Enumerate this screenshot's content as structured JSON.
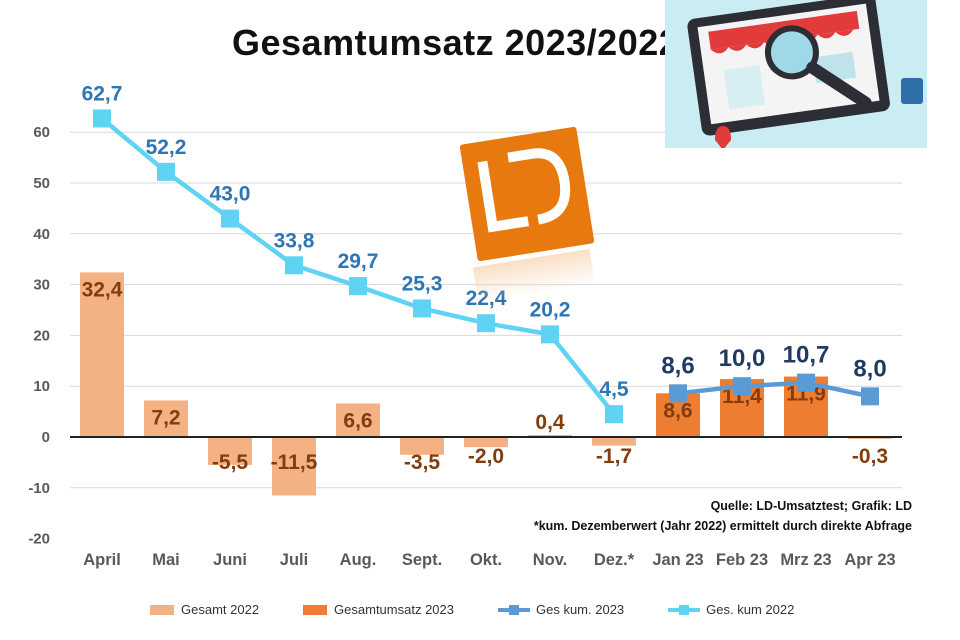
{
  "title": "Gesamtumsatz 2023/2022",
  "source_line1": "Quelle: LD-Umsatztest; Grafik: LD",
  "source_line2": "*kum. Dezemberwert (Jahr 2022) ermittelt durch direkte Abfrage",
  "colors": {
    "gesamt2022": "#f4b183",
    "gesamt2023": "#ed7d31",
    "kum2023": "#5b9bd5",
    "kum2022": "#5fd3f3",
    "label2022": "#2e75b6",
    "label2023": "#1f3b63",
    "barlabel": "#843c0c"
  },
  "legend": [
    {
      "label": "Gesamt 2022",
      "kind": "bar",
      "color": "#f4b183"
    },
    {
      "label": "Gesamtumsatz 2023",
      "kind": "bar",
      "color": "#ed7d31"
    },
    {
      "label": "Ges kum. 2023",
      "kind": "line",
      "color": "#5b9bd5"
    },
    {
      "label": "Ges. kum 2022",
      "kind": "line",
      "color": "#5fd3f3"
    }
  ],
  "chart_data": {
    "type": "bar",
    "title": "Gesamtumsatz 2023/2022",
    "categories": [
      "April",
      "Mai",
      "Juni",
      "Juli",
      "Aug.",
      "Sept.",
      "Okt.",
      "Nov.",
      "Dez.*",
      "Jan 23",
      "Feb 23",
      "Mrz 23",
      "Apr 23"
    ],
    "ylim": [
      -20,
      60
    ],
    "yticks": [
      -20,
      -10,
      0,
      10,
      20,
      30,
      40,
      50,
      60
    ],
    "grid": true,
    "legend_position": "bottom",
    "series": [
      {
        "name": "Gesamt 2022",
        "kind": "bar",
        "values": [
          32.4,
          7.2,
          -5.5,
          -11.5,
          6.6,
          -3.5,
          -2.0,
          0.4,
          -1.7,
          null,
          null,
          null,
          null
        ],
        "labels": [
          "32,4",
          "7,2",
          "-5,5",
          "-11,5",
          "6,6",
          "-3,5",
          "-2,0",
          "0,4",
          "-1,7",
          null,
          null,
          null,
          null
        ]
      },
      {
        "name": "Gesamtumsatz 2023",
        "kind": "bar",
        "values": [
          null,
          null,
          null,
          null,
          null,
          null,
          null,
          null,
          null,
          8.6,
          11.4,
          11.9,
          -0.3
        ],
        "labels": [
          null,
          null,
          null,
          null,
          null,
          null,
          null,
          null,
          null,
          "8,6",
          "11,4",
          "11,9",
          "-0,3"
        ]
      },
      {
        "name": "Ges kum. 2023",
        "kind": "line",
        "values": [
          null,
          null,
          null,
          null,
          null,
          null,
          null,
          null,
          null,
          8.6,
          10.0,
          10.7,
          8.0
        ],
        "labels": [
          null,
          null,
          null,
          null,
          null,
          null,
          null,
          null,
          null,
          "8,6",
          "10,0",
          "10,7",
          "8,0"
        ]
      },
      {
        "name": "Ges. kum 2022",
        "kind": "line",
        "values": [
          62.7,
          52.2,
          43.0,
          33.8,
          29.7,
          25.3,
          22.4,
          20.2,
          4.5,
          null,
          null,
          null,
          null
        ],
        "labels": [
          "62,7",
          "52,2",
          "43,0",
          "33,8",
          "29,7",
          "25,3",
          "22,4",
          "20,2",
          "4,5",
          null,
          null,
          null,
          null
        ]
      }
    ]
  }
}
